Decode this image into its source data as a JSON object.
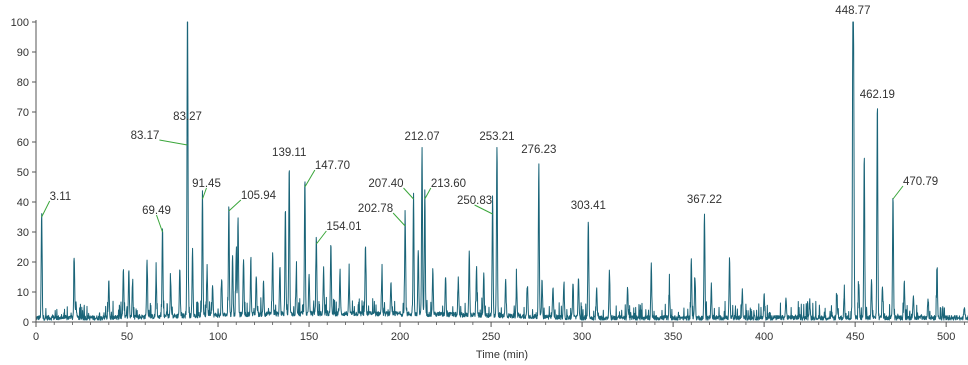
{
  "chart_data": {
    "type": "line",
    "title": "",
    "xlabel": "Time (min)",
    "ylabel": "",
    "xlim": [
      0,
      512
    ],
    "ylim": [
      0,
      100
    ],
    "x_ticks": [
      0,
      50,
      100,
      150,
      200,
      250,
      300,
      350,
      400,
      450,
      500
    ],
    "y_ticks": [
      0,
      10,
      20,
      30,
      40,
      50,
      60,
      70,
      80,
      90,
      100
    ],
    "grid": false,
    "colors": {
      "trace": "#1a6478",
      "leader": "#3aa63a",
      "axis": "#555555",
      "text": "#333333"
    },
    "peaks": [
      {
        "x": 3.11,
        "y": 35
      },
      {
        "x": 21,
        "y": 20
      },
      {
        "x": 22,
        "y": 5
      },
      {
        "x": 40,
        "y": 13
      },
      {
        "x": 48,
        "y": 16
      },
      {
        "x": 51,
        "y": 16
      },
      {
        "x": 53,
        "y": 12
      },
      {
        "x": 61,
        "y": 19
      },
      {
        "x": 66,
        "y": 14
      },
      {
        "x": 69.49,
        "y": 30
      },
      {
        "x": 74,
        "y": 12
      },
      {
        "x": 79,
        "y": 16
      },
      {
        "x": 83.17,
        "y": 48
      },
      {
        "x": 83.27,
        "y": 62
      },
      {
        "x": 86,
        "y": 22
      },
      {
        "x": 91.45,
        "y": 41
      },
      {
        "x": 94,
        "y": 15
      },
      {
        "x": 97,
        "y": 10
      },
      {
        "x": 102,
        "y": 12
      },
      {
        "x": 105.94,
        "y": 37
      },
      {
        "x": 108,
        "y": 20
      },
      {
        "x": 110,
        "y": 21
      },
      {
        "x": 111,
        "y": 33
      },
      {
        "x": 114,
        "y": 19
      },
      {
        "x": 118,
        "y": 16
      },
      {
        "x": 121,
        "y": 13
      },
      {
        "x": 125,
        "y": 11
      },
      {
        "x": 130,
        "y": 21
      },
      {
        "x": 134,
        "y": 16
      },
      {
        "x": 137,
        "y": 36
      },
      {
        "x": 139.11,
        "y": 50
      },
      {
        "x": 143,
        "y": 14
      },
      {
        "x": 147.7,
        "y": 45
      },
      {
        "x": 150,
        "y": 13
      },
      {
        "x": 154.01,
        "y": 26
      },
      {
        "x": 158,
        "y": 15
      },
      {
        "x": 162,
        "y": 23
      },
      {
        "x": 167,
        "y": 13
      },
      {
        "x": 172,
        "y": 12
      },
      {
        "x": 181,
        "y": 23
      },
      {
        "x": 190,
        "y": 12
      },
      {
        "x": 195,
        "y": 10
      },
      {
        "x": 202.78,
        "y": 32
      },
      {
        "x": 207.4,
        "y": 40
      },
      {
        "x": 210,
        "y": 22
      },
      {
        "x": 212.07,
        "y": 56
      },
      {
        "x": 213.6,
        "y": 41
      },
      {
        "x": 218,
        "y": 15
      },
      {
        "x": 225,
        "y": 13
      },
      {
        "x": 232,
        "y": 12
      },
      {
        "x": 238,
        "y": 21
      },
      {
        "x": 242,
        "y": 16
      },
      {
        "x": 246,
        "y": 14
      },
      {
        "x": 250.83,
        "y": 40
      },
      {
        "x": 253.21,
        "y": 56
      },
      {
        "x": 258,
        "y": 12
      },
      {
        "x": 264,
        "y": 11
      },
      {
        "x": 270,
        "y": 10
      },
      {
        "x": 276.23,
        "y": 51
      },
      {
        "x": 278,
        "y": 12
      },
      {
        "x": 284,
        "y": 10
      },
      {
        "x": 290,
        "y": 11
      },
      {
        "x": 295,
        "y": 12
      },
      {
        "x": 298,
        "y": 14
      },
      {
        "x": 303.41,
        "y": 33
      },
      {
        "x": 308,
        "y": 10
      },
      {
        "x": 315,
        "y": 16
      },
      {
        "x": 325,
        "y": 10
      },
      {
        "x": 338,
        "y": 18
      },
      {
        "x": 348,
        "y": 9
      },
      {
        "x": 360,
        "y": 20
      },
      {
        "x": 362,
        "y": 14
      },
      {
        "x": 367.22,
        "y": 35
      },
      {
        "x": 371,
        "y": 11
      },
      {
        "x": 381,
        "y": 20
      },
      {
        "x": 388,
        "y": 9
      },
      {
        "x": 400,
        "y": 8
      },
      {
        "x": 412,
        "y": 7
      },
      {
        "x": 425,
        "y": 6
      },
      {
        "x": 440,
        "y": 7
      },
      {
        "x": 444,
        "y": 8
      },
      {
        "x": 448.77,
        "y": 100
      },
      {
        "x": 449.2,
        "y": 66
      },
      {
        "x": 452,
        "y": 12
      },
      {
        "x": 455,
        "y": 55
      },
      {
        "x": 459,
        "y": 12
      },
      {
        "x": 462.19,
        "y": 70
      },
      {
        "x": 465,
        "y": 11
      },
      {
        "x": 470.79,
        "y": 41
      },
      {
        "x": 477,
        "y": 12
      },
      {
        "x": 482,
        "y": 8
      },
      {
        "x": 490,
        "y": 6
      },
      {
        "x": 495,
        "y": 14
      },
      {
        "x": 510,
        "y": 4
      }
    ],
    "annotations": [
      {
        "label": "3.11",
        "x": 3.11,
        "y": 35
      },
      {
        "label": "69.49",
        "x": 69.49,
        "y": 30
      },
      {
        "label": "83.17",
        "x": 83.17,
        "y": 59
      },
      {
        "label": "83.27",
        "x": 83.27,
        "y": 62
      },
      {
        "label": "91.45",
        "x": 91.45,
        "y": 41
      },
      {
        "label": "105.94",
        "x": 105.94,
        "y": 37
      },
      {
        "label": "139.11",
        "x": 139.11,
        "y": 50
      },
      {
        "label": "147.70",
        "x": 147.7,
        "y": 45
      },
      {
        "label": "154.01",
        "x": 154.01,
        "y": 26
      },
      {
        "label": "202.78",
        "x": 202.78,
        "y": 32
      },
      {
        "label": "207.40",
        "x": 207.4,
        "y": 41
      },
      {
        "label": "212.07",
        "x": 212.07,
        "y": 56
      },
      {
        "label": "213.60",
        "x": 213.6,
        "y": 41
      },
      {
        "label": "250.83",
        "x": 250.83,
        "y": 36
      },
      {
        "label": "253.21",
        "x": 253.21,
        "y": 56
      },
      {
        "label": "276.23",
        "x": 276.23,
        "y": 51
      },
      {
        "label": "303.41",
        "x": 303.41,
        "y": 33
      },
      {
        "label": "367.22",
        "x": 367.22,
        "y": 35
      },
      {
        "label": "448.77",
        "x": 448.77,
        "y": 100
      },
      {
        "label": "462.19",
        "x": 462.19,
        "y": 70
      },
      {
        "label": "470.79",
        "x": 470.79,
        "y": 41
      }
    ]
  }
}
